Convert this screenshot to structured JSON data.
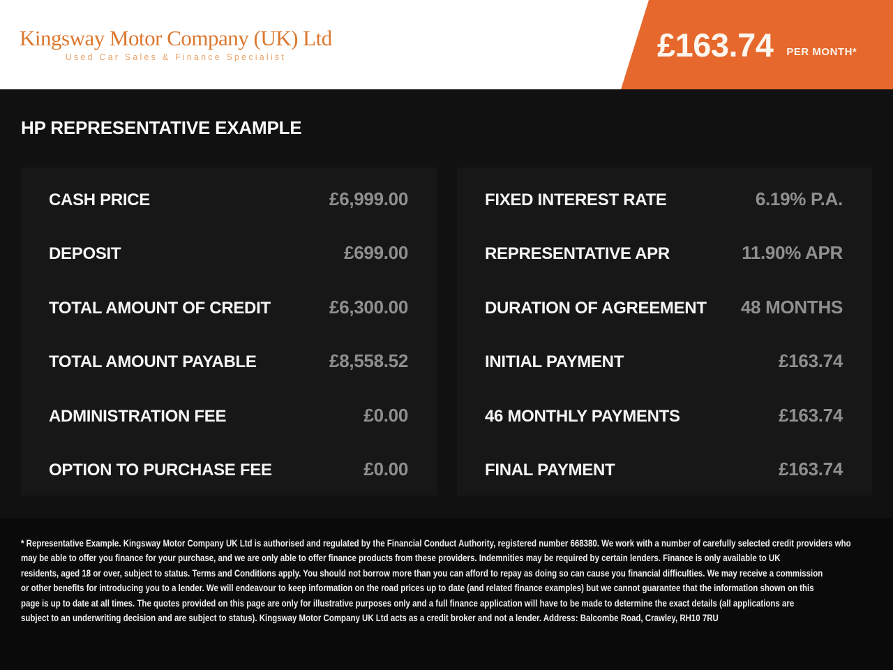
{
  "header": {
    "logo": {
      "title": "Kingsway Motor Company (UK) Ltd",
      "tagline": "Used Car Sales & Finance Specialist"
    },
    "price_banner": {
      "amount": "£163.74",
      "suffix": "PER MONTH*"
    }
  },
  "section_title": "HP REPRESENTATIVE EXAMPLE",
  "finance": {
    "left_rows": [
      {
        "label": "CASH PRICE",
        "value": "£6,999.00"
      },
      {
        "label": "DEPOSIT",
        "value": "£699.00"
      },
      {
        "label": "TOTAL AMOUNT OF CREDIT",
        "value": "£6,300.00"
      },
      {
        "label": "TOTAL AMOUNT PAYABLE",
        "value": "£8,558.52"
      },
      {
        "label": "ADMINISTRATION FEE",
        "value": "£0.00"
      },
      {
        "label": "OPTION TO PURCHASE FEE",
        "value": "£0.00"
      }
    ],
    "right_rows": [
      {
        "label": "FIXED INTEREST RATE",
        "value": "6.19% P.A."
      },
      {
        "label": "REPRESENTATIVE APR",
        "value": "11.90% APR"
      },
      {
        "label": "DURATION OF AGREEMENT",
        "value": "48 MONTHS"
      },
      {
        "label": "INITIAL PAYMENT",
        "value": "£163.74"
      },
      {
        "label": "46 MONTHLY PAYMENTS",
        "value": "£163.74"
      },
      {
        "label": "FINAL PAYMENT",
        "value": "£163.74"
      }
    ]
  },
  "disclaimer_lines": [
    "* Representative Example. Kingsway Motor Company UK Ltd is authorised and regulated by the Financial Conduct Authority, registered number 668380. We work with a number of carefully selected credit providers who",
    "may be able to offer you finance for your purchase, and we are only able to offer finance products from these providers. Indemnities may be required by certain lenders. Finance is only available to UK",
    "residents, aged 18 or over, subject to status. Terms and Conditions apply. You should not borrow more than you can afford to repay as doing so can cause you financial difficulties. We may receive a commission",
    "or other benefits for introducing you to a lender. We will endeavour to keep information on the road prices up to date (and related finance examples) but we cannot guarantee that the information shown on this",
    "page is up to date at all times. The quotes provided on this page are only for illustrative purposes only and a full finance application will have to be made to determine the exact details (all applications are",
    "subject to an underwriting decision and are subject to status). Kingsway Motor Company UK Ltd acts as a credit broker and not a lender. Address: Balcombe Road, Crawley, RH10 7RU"
  ],
  "colors": {
    "accent_orange": "#e6682c",
    "logo_orange": "#dc772d",
    "logo_tagline_orange": "#e9a469",
    "label_white": "#f5f5f5",
    "value_gray": "#8f8f8f",
    "page_bg": "#111111",
    "panel_bg": "#171717",
    "footer_bg": "#0a0a0a"
  }
}
